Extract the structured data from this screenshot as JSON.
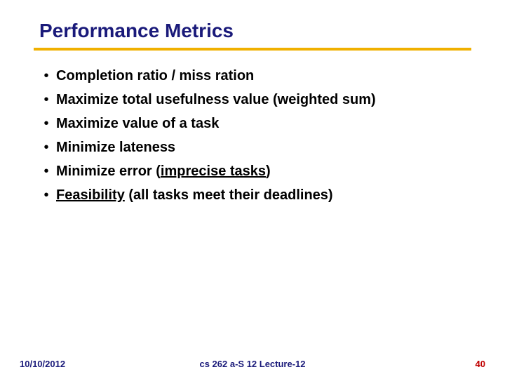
{
  "title": "Performance Metrics",
  "bullets": [
    {
      "prefix": "",
      "text": "Completion ratio / miss ration",
      "underline": false
    },
    {
      "prefix": "",
      "text": "Maximize total usefulness value (weighted sum)",
      "underline": false
    },
    {
      "prefix": "",
      "text": "Maximize value of a task",
      "underline": false
    },
    {
      "prefix": "",
      "text": "Minimize lateness",
      "underline": false
    },
    {
      "prefix": "Minimize error (",
      "text": "imprecise tasks",
      "suffix": ")",
      "underline": true
    },
    {
      "prefix": "",
      "text": "Feasibility",
      "suffix": " (all tasks meet their deadlines)",
      "underline": true
    }
  ],
  "footer": {
    "date": "10/10/2012",
    "center": "cs 262 a-S 12 Lecture-12",
    "page": "40"
  },
  "colors": {
    "title": "#1a1a7a",
    "underline_bar": "#f0b000",
    "footer_text": "#1a1a7a",
    "page_number": "#c00000",
    "body_text": "#000000",
    "background": "#ffffff"
  },
  "bullet_char": "•"
}
